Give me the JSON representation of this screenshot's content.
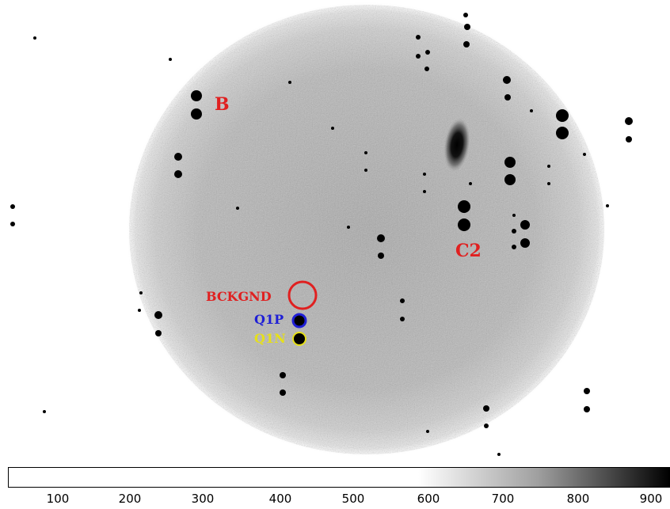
{
  "image": {
    "labels": [
      {
        "id": "B",
        "text": "B",
        "color": "#e02020"
      },
      {
        "id": "C2",
        "text": "C2",
        "color": "#e02020"
      },
      {
        "id": "BCKGND",
        "text": "BCKGND",
        "color": "#e02020"
      },
      {
        "id": "Q1P",
        "text": "Q1P",
        "color": "#1f1fd6"
      },
      {
        "id": "Q1N",
        "text": "Q1N",
        "color": "#e6e01a"
      }
    ],
    "apertures": [
      {
        "name": "bckgnd-aperture",
        "color": "#e02020"
      },
      {
        "name": "q1p-aperture",
        "color": "#1f1fd6"
      },
      {
        "name": "q1n-aperture",
        "color": "#e6e01a"
      }
    ]
  },
  "colorbar": {
    "ticks": [
      "100",
      "200",
      "300",
      "400",
      "500",
      "600",
      "700",
      "800",
      "900"
    ]
  }
}
